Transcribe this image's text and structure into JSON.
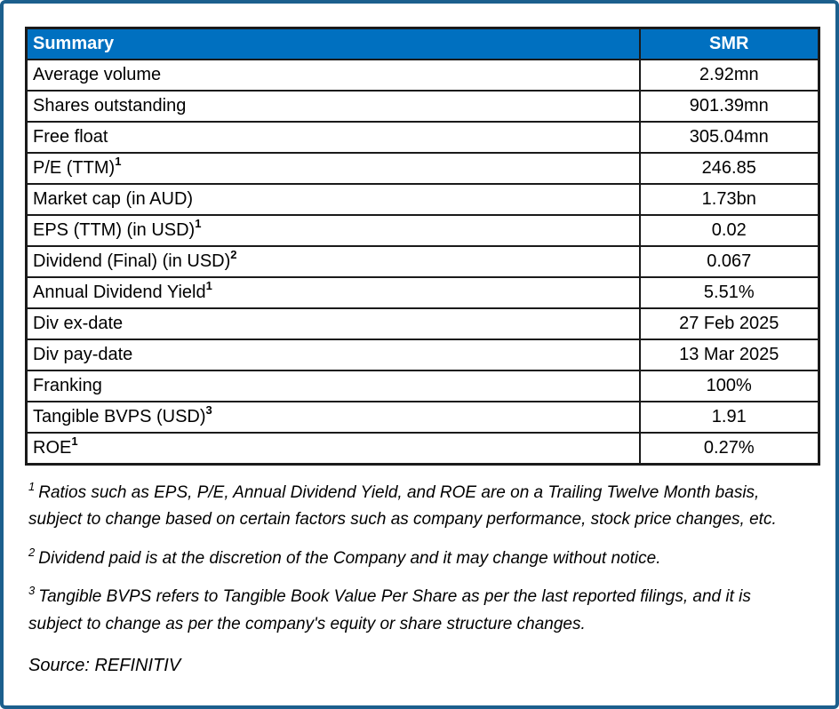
{
  "colors": {
    "header_background": "#0070c0",
    "header_text": "#ffffff",
    "frame_border": "#1c5f8d",
    "table_border": "#1a1a1a",
    "body_text": "#000000"
  },
  "table": {
    "header": {
      "summary_label": "Summary",
      "ticker": "SMR"
    },
    "rows": [
      {
        "label": "Average volume",
        "sup": "",
        "value": "2.92mn"
      },
      {
        "label": "Shares outstanding",
        "sup": "",
        "value": "901.39mn"
      },
      {
        "label": "Free float",
        "sup": "",
        "value": "305.04mn"
      },
      {
        "label": "P/E (TTM)",
        "sup": "1",
        "value": "246.85"
      },
      {
        "label": "Market cap (in AUD)",
        "sup": "",
        "value": "1.73bn"
      },
      {
        "label": "EPS (TTM) (in USD)",
        "sup": "1",
        "value": "0.02"
      },
      {
        "label": "Dividend (Final) (in USD)",
        "sup": "2",
        "value": "0.067"
      },
      {
        "label": "Annual Dividend Yield",
        "sup": "1",
        "value": "5.51%"
      },
      {
        "label": "Div ex-date",
        "sup": "",
        "value": "27 Feb 2025"
      },
      {
        "label": "Div pay-date",
        "sup": "",
        "value": "13 Mar 2025"
      },
      {
        "label": "Franking",
        "sup": "",
        "value": "100%"
      },
      {
        "label": "Tangible BVPS (USD)",
        "sup": "3",
        "value": "1.91"
      },
      {
        "label": "ROE",
        "sup": "1",
        "value": "0.27%"
      }
    ]
  },
  "footnotes": [
    {
      "sup": "1",
      "text": "Ratios such as EPS, P/E,  Annual Dividend Yield, and ROE are on a Trailing Twelve Month basis, subject to change based on certain factors such as company performance, stock price changes, etc."
    },
    {
      "sup": "2",
      "text": "Dividend paid is at the discretion of the Company and it may change without notice."
    },
    {
      "sup": "3",
      "text": "Tangible BVPS refers to Tangible Book Value Per Share as per the last reported filings, and it is subject to change as per the company's equity or share structure changes."
    }
  ],
  "source_line": "Source: REFINITIV"
}
